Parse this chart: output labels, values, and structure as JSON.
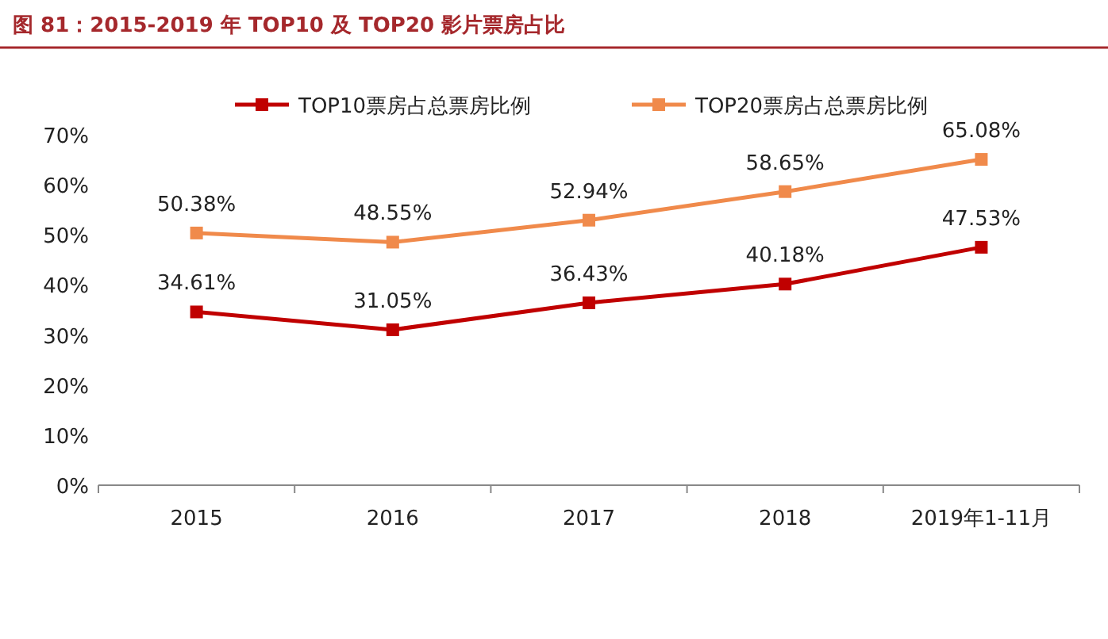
{
  "chart_data": {
    "type": "line",
    "title": "图 81：2015-2019 年 TOP10 及 TOP20 影片票房占比",
    "categories": [
      "2015",
      "2016",
      "2017",
      "2018",
      "2019年1-11月"
    ],
    "series": [
      {
        "name": "TOP10票房占总票房比例",
        "color": "#c00000",
        "values": [
          34.61,
          31.05,
          36.43,
          40.18,
          47.53
        ],
        "value_labels": [
          "34.61%",
          "31.05%",
          "36.43%",
          "40.18%",
          "47.53%"
        ]
      },
      {
        "name": "TOP20票房占总票房比例",
        "color": "#f08a4b",
        "values": [
          50.38,
          48.55,
          52.94,
          58.65,
          65.08
        ],
        "value_labels": [
          "50.38%",
          "48.55%",
          "52.94%",
          "58.65%",
          "65.08%"
        ]
      }
    ],
    "ylim": [
      0,
      70
    ],
    "yticks": [
      {
        "value": 0,
        "label": "0%"
      },
      {
        "value": 10,
        "label": "10%"
      },
      {
        "value": 20,
        "label": "20%"
      },
      {
        "value": 30,
        "label": "30%"
      },
      {
        "value": 40,
        "label": "40%"
      },
      {
        "value": 50,
        "label": "50%"
      },
      {
        "value": 60,
        "label": "60%"
      },
      {
        "value": 70,
        "label": "70%"
      }
    ],
    "legend": "top",
    "marker": "square",
    "line_style": "solid"
  }
}
